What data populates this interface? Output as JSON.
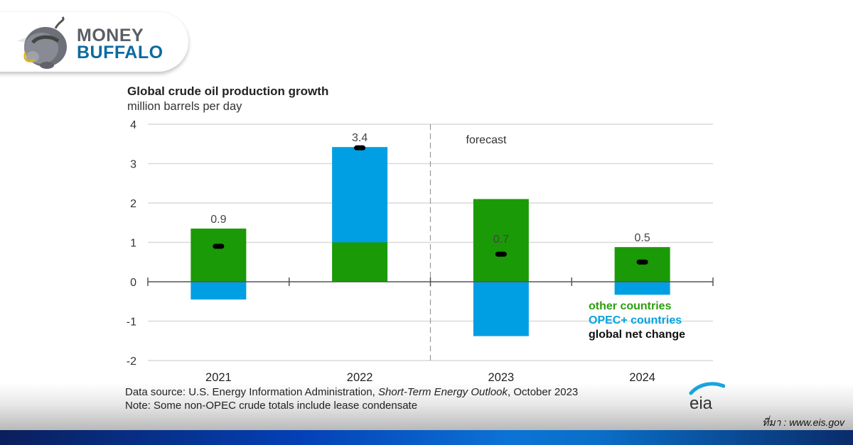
{
  "brand": {
    "line1": "MONEY",
    "line2": "BUFFALO",
    "icon": "buffalo-mascot-icon"
  },
  "credit": "ที่มา : www.eis.gov",
  "chart_data": {
    "type": "bar",
    "stacked": true,
    "title": "Global crude oil production growth",
    "ylabel": "million barrels per day",
    "xlabel": "",
    "categories": [
      "2021",
      "2022",
      "2023",
      "2024"
    ],
    "series": [
      {
        "name": "other countries",
        "color": "#1a9a06",
        "values": [
          1.35,
          1.0,
          2.1,
          0.88
        ]
      },
      {
        "name": "OPEC+ countries",
        "color": "#009fe3",
        "values": [
          -0.45,
          2.42,
          -1.38,
          -0.33
        ]
      }
    ],
    "net_change": {
      "name": "global net change",
      "color": "#000000",
      "values": [
        0.9,
        3.4,
        0.7,
        0.5
      ],
      "labels": [
        "0.9",
        "3.4",
        "0.7",
        "0.5"
      ]
    },
    "ylim": [
      -2,
      4
    ],
    "yticks": [
      4,
      3,
      2,
      1,
      0,
      -1,
      -2
    ],
    "grid": true,
    "forecast_divider_after": "2022",
    "annotation": "forecast",
    "legend": {
      "placement": "bottom-right",
      "items": [
        {
          "label": "other countries",
          "color": "#2e9e10"
        },
        {
          "label": "OPEC+ countries",
          "color": "#06a2e0"
        },
        {
          "label": "global net change",
          "color": "#111111"
        }
      ]
    },
    "source_prefix": "Data source: U.S. Energy Information Administration, ",
    "source_publication": "Short-Term Energy Outlook",
    "source_suffix": ", October 2023",
    "note": "Note: Some non-OPEC crude totals include lease condensate",
    "publisher_logo": "eia"
  }
}
